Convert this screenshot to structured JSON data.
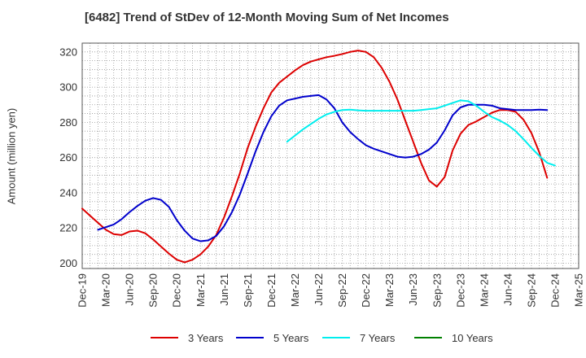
{
  "chart_data": {
    "type": "line",
    "title": "[6482]  Trend of StDev of 12-Month Moving Sum of Net Incomes",
    "xlabel": "",
    "ylabel": "Amount (million yen)",
    "ylim": [
      197,
      325
    ],
    "yticks": [
      200,
      220,
      240,
      260,
      280,
      300,
      320
    ],
    "x_ticks": [
      "Dec-19",
      "Mar-20",
      "Jun-20",
      "Sep-20",
      "Dec-20",
      "Mar-21",
      "Jun-21",
      "Sep-21",
      "Dec-21",
      "Mar-22",
      "Jun-22",
      "Sep-22",
      "Dec-22",
      "Mar-23",
      "Jun-23",
      "Sep-23",
      "Dec-23",
      "Mar-24",
      "Jun-24",
      "Sep-24",
      "Dec-24",
      "Mar-25"
    ],
    "grid": true,
    "legend_position": "bottom",
    "series": [
      {
        "name": "3 Years",
        "color": "#dd0000",
        "start_index": 0,
        "values": [
          231,
          227,
          223,
          219,
          216.5,
          216,
          218,
          218.5,
          217,
          213.5,
          209.5,
          205.5,
          202,
          200.5,
          202,
          205,
          209.5,
          216,
          226,
          238,
          251,
          265.5,
          277.5,
          288,
          297,
          302.5,
          306,
          309.5,
          312.5,
          314.5,
          315.8,
          317,
          317.8,
          318.8,
          320,
          320.8,
          320,
          317,
          311,
          303,
          293,
          281,
          269,
          257,
          247,
          243.5,
          249,
          264,
          273.5,
          278.5,
          280.5,
          283,
          285.5,
          287,
          287,
          286,
          281.5,
          274,
          263,
          248.5
        ]
      },
      {
        "name": "5 Years",
        "color": "#0000cc",
        "start_index": 2,
        "values": [
          219,
          220.5,
          222,
          225,
          229,
          232.5,
          235.5,
          237,
          236,
          232,
          224.5,
          218.5,
          214,
          212.5,
          213,
          215.5,
          221,
          229,
          239,
          251,
          263.5,
          274.5,
          283.5,
          289.5,
          292.5,
          293.5,
          294.5,
          295,
          295.5,
          293,
          288,
          280,
          274.5,
          270.5,
          267,
          265,
          263.5,
          262,
          260.5,
          260,
          260.5,
          262,
          264.5,
          268.5,
          275.5,
          284,
          288.5,
          290,
          290,
          290,
          289.5,
          288,
          287.5,
          287,
          287,
          287,
          287.2,
          287
        ]
      },
      {
        "name": "7 Years",
        "color": "#00eeee",
        "start_index": 26,
        "values": [
          269,
          272.5,
          276,
          279,
          282,
          284.5,
          286,
          287,
          287.2,
          286.8,
          286.6,
          286.6,
          286.6,
          286.6,
          286.6,
          286.6,
          286.6,
          287,
          287.5,
          288,
          289.5,
          291,
          292.5,
          292,
          289.5,
          286,
          283,
          281,
          278.5,
          275,
          270.5,
          265.5,
          261,
          257,
          255.5
        ]
      },
      {
        "name": "10 Years",
        "color": "#008000",
        "start_index": 0,
        "values": []
      }
    ]
  }
}
